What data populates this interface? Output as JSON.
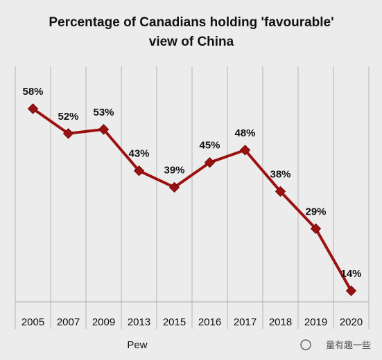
{
  "chart_data": {
    "type": "line",
    "title_lines": [
      "Percentage of Canadians holding 'favourable'",
      "view of China"
    ],
    "categories": [
      "2005",
      "2007",
      "2009",
      "2013",
      "2015",
      "2016",
      "2017",
      "2018",
      "2019",
      "2020"
    ],
    "series": [
      {
        "values": [
          58,
          52,
          53,
          43,
          39,
          45,
          48,
          38,
          29,
          14
        ],
        "labels": [
          "58%",
          "52%",
          "53%",
          "43%",
          "39%",
          "45%",
          "48%",
          "38%",
          "29%",
          "14%"
        ],
        "color": "#9b1111"
      }
    ],
    "ylim": [
      0,
      70
    ],
    "grid": "vertical",
    "source": "Pew"
  },
  "watermark": "量有趣一些"
}
